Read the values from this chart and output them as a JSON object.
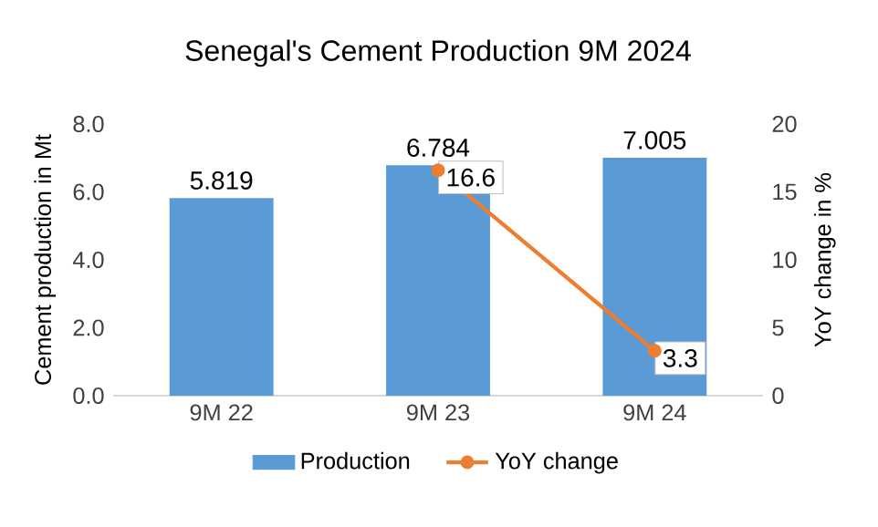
{
  "chart_data": {
    "type": "bar",
    "title": "Senegal's Cement Production 9M 2024",
    "categories": [
      "9M 22",
      "9M 23",
      "9M 24"
    ],
    "ylabel": "Cement production in Mt",
    "y2label": "YoY change in %",
    "series": [
      {
        "name": "Production",
        "color": "#5b9bd5",
        "values": [
          5.819,
          6.784,
          7.005
        ],
        "value_labels": [
          "5.819",
          "6.784",
          "7.005"
        ]
      },
      {
        "name": "YoY change",
        "type": "line",
        "axis": "y2",
        "color": "#ed7d31",
        "marker": "circle",
        "values": [
          null,
          16.6,
          3.3
        ],
        "value_labels": [
          null,
          "16.6",
          "3.3"
        ]
      }
    ],
    "ylim": [
      0,
      8
    ],
    "yticks": [
      {
        "value": 0,
        "label": "0.0"
      },
      {
        "value": 2,
        "label": "2.0"
      },
      {
        "value": 4,
        "label": "4.0"
      },
      {
        "value": 6,
        "label": "6.0"
      },
      {
        "value": 8,
        "label": "8.0"
      }
    ],
    "y2lim": [
      0,
      20
    ],
    "y2ticks": [
      0,
      5,
      10,
      15,
      20
    ],
    "legend": "bottom"
  }
}
